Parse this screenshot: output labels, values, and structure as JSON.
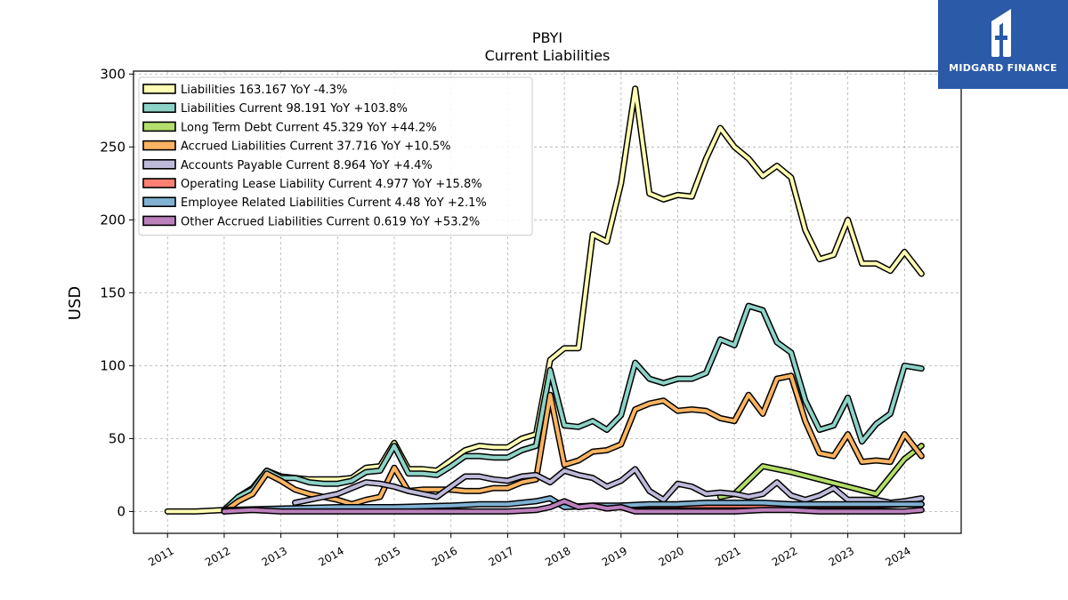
{
  "brand": {
    "name": "MIDGARD FINANCE",
    "color": "#2a5aa8"
  },
  "chart_data": {
    "type": "line",
    "title": "PBYI",
    "subtitle": "Current  Liabilities",
    "ylabel": "USD",
    "xlabel": "",
    "ylim": [
      -15,
      302
    ],
    "xlim": [
      2010.4,
      2025.0
    ],
    "yticks": [
      0,
      50,
      100,
      150,
      200,
      250,
      300
    ],
    "xticks": [
      "2011",
      "2012",
      "2013",
      "2014",
      "2015",
      "2016",
      "2017",
      "2018",
      "2019",
      "2020",
      "2021",
      "2022",
      "2023",
      "2024"
    ],
    "grid": true,
    "legend_position": "top-left",
    "series": [
      {
        "name": "Liabilities",
        "legend": "Liabilities  163.167 YoY -4.3%",
        "color": "#ffffb3",
        "x": [
          2011.0,
          2011.5,
          2012.0,
          2012.25,
          2012.5,
          2012.75,
          2013.0,
          2013.25,
          2013.5,
          2013.75,
          2014.0,
          2014.25,
          2014.5,
          2014.75,
          2015.0,
          2015.25,
          2015.5,
          2015.75,
          2016.0,
          2016.25,
          2016.5,
          2016.75,
          2017.0,
          2017.25,
          2017.5,
          2017.75,
          2018.0,
          2018.25,
          2018.5,
          2018.75,
          2019.0,
          2019.25,
          2019.5,
          2019.75,
          2020.0,
          2020.25,
          2020.5,
          2020.75,
          2021.0,
          2021.25,
          2021.5,
          2021.75,
          2022.0,
          2022.25,
          2022.5,
          2022.75,
          2023.0,
          2023.25,
          2023.5,
          2023.75,
          2024.0,
          2024.3
        ],
        "y": [
          0,
          0,
          1,
          10,
          16,
          28,
          24,
          23,
          22,
          22,
          22,
          23,
          30,
          31,
          47,
          29,
          29,
          28,
          35,
          42,
          45,
          44,
          44,
          50,
          53,
          104,
          112,
          112,
          190,
          185,
          225,
          290,
          218,
          214,
          217,
          216,
          242,
          263,
          250,
          242,
          230,
          237,
          229,
          193,
          173,
          176,
          200,
          170,
          170,
          165,
          178,
          163
        ]
      },
      {
        "name": "Liabilities Current",
        "legend": "Liabilities Current  98.191 YoY +103.8%",
        "color": "#8dd3c7",
        "x": [
          2012.0,
          2012.25,
          2012.5,
          2012.75,
          2013.0,
          2013.25,
          2013.5,
          2013.75,
          2014.0,
          2014.25,
          2014.5,
          2014.75,
          2015.0,
          2015.25,
          2015.5,
          2015.75,
          2016.0,
          2016.25,
          2016.5,
          2016.75,
          2017.0,
          2017.25,
          2017.5,
          2017.75,
          2018.0,
          2018.25,
          2018.5,
          2018.75,
          2019.0,
          2019.25,
          2019.5,
          2019.75,
          2020.0,
          2020.25,
          2020.5,
          2020.75,
          2021.0,
          2021.25,
          2021.5,
          2021.75,
          2022.0,
          2022.25,
          2022.5,
          2022.75,
          2023.0,
          2023.25,
          2023.5,
          2023.75,
          2024.0,
          2024.3
        ],
        "y": [
          1,
          10,
          15,
          28,
          23,
          23,
          20,
          19,
          19,
          21,
          27,
          28,
          45,
          26,
          26,
          25,
          31,
          38,
          38,
          37,
          37,
          42,
          45,
          97,
          59,
          58,
          62,
          56,
          66,
          102,
          91,
          88,
          91,
          91,
          95,
          118,
          114,
          141,
          138,
          116,
          109,
          76,
          56,
          59,
          78,
          48,
          60,
          67,
          100,
          98
        ]
      },
      {
        "name": "Long Term Debt Current",
        "legend": "Long Term Debt Current  45.329 YoY +44.2%",
        "color": "#b3de69",
        "x": [
          2020.75,
          2021.0,
          2021.5,
          2022.0,
          2022.5,
          2023.0,
          2023.5,
          2024.0,
          2024.3
        ],
        "y": [
          10,
          12,
          31,
          27,
          22,
          17,
          12,
          36,
          45
        ]
      },
      {
        "name": "Accrued Liabilities Current",
        "legend": "Accrued Liabilities Current  37.716 YoY +10.5%",
        "color": "#fdb462",
        "x": [
          2012.0,
          2012.25,
          2012.5,
          2012.75,
          2013.0,
          2013.25,
          2013.5,
          2013.75,
          2014.0,
          2014.25,
          2014.5,
          2014.75,
          2015.0,
          2015.25,
          2015.5,
          2015.75,
          2016.0,
          2016.25,
          2016.5,
          2016.75,
          2017.0,
          2017.25,
          2017.5,
          2017.75,
          2018.0,
          2018.25,
          2018.5,
          2018.75,
          2019.0,
          2019.25,
          2019.5,
          2019.75,
          2020.0,
          2020.25,
          2020.5,
          2020.75,
          2021.0,
          2021.25,
          2021.5,
          2021.75,
          2022.0,
          2022.25,
          2022.5,
          2022.75,
          2023.0,
          2023.25,
          2023.5,
          2023.75,
          2024.0,
          2024.3
        ],
        "y": [
          0,
          7,
          12,
          26,
          21,
          15,
          12,
          10,
          8,
          5,
          8,
          10,
          30,
          14,
          15,
          15,
          15,
          14,
          14,
          16,
          16,
          20,
          22,
          80,
          32,
          35,
          41,
          42,
          46,
          70,
          74,
          76,
          69,
          70,
          69,
          64,
          62,
          80,
          67,
          91,
          93,
          62,
          40,
          38,
          53,
          34,
          35,
          34,
          53,
          38
        ]
      },
      {
        "name": "Accounts Payable Current",
        "legend": "Accounts Payable Current  8.964 YoY +4.4%",
        "color": "#bebada",
        "x": [
          2013.25,
          2013.5,
          2013.75,
          2014.0,
          2014.25,
          2014.5,
          2014.75,
          2015.0,
          2015.25,
          2015.5,
          2015.75,
          2016.0,
          2016.25,
          2016.5,
          2016.75,
          2017.0,
          2017.25,
          2017.5,
          2017.75,
          2018.0,
          2018.25,
          2018.5,
          2018.75,
          2019.0,
          2019.25,
          2019.5,
          2019.75,
          2020.0,
          2020.25,
          2020.5,
          2020.75,
          2021.0,
          2021.25,
          2021.5,
          2021.75,
          2022.0,
          2022.25,
          2022.5,
          2022.75,
          2023.0,
          2023.25,
          2023.5,
          2023.75,
          2024.0,
          2024.3
        ],
        "y": [
          6,
          8,
          10,
          12,
          16,
          20,
          19,
          17,
          14,
          12,
          10,
          17,
          24,
          24,
          22,
          21,
          24,
          25,
          20,
          28,
          25,
          23,
          17,
          21,
          29,
          14,
          8,
          19,
          17,
          12,
          13,
          12,
          10,
          12,
          20,
          11,
          8,
          11,
          16,
          8,
          8,
          8,
          6,
          7,
          9
        ]
      },
      {
        "name": "Operating Lease Liability Current",
        "legend": "Operating Lease Liability Current  4.977 YoY +15.8%",
        "color": "#fb8072",
        "x": [
          2019.0,
          2019.5,
          2020.0,
          2020.5,
          2021.0,
          2021.5,
          2022.0,
          2022.5,
          2023.0,
          2023.5,
          2024.0,
          2024.3
        ],
        "y": [
          4,
          4,
          4,
          4,
          4,
          4,
          4,
          4,
          4,
          4,
          5,
          5
        ]
      },
      {
        "name": "Employee Related Liabilities Current",
        "legend": "Employee Related Liabilities Current  4.48 YoY +2.1%",
        "color": "#80b1d3",
        "x": [
          2012.0,
          2013.0,
          2014.0,
          2015.0,
          2016.0,
          2016.5,
          2017.0,
          2017.5,
          2017.75,
          2018.0,
          2018.5,
          2019.0,
          2019.5,
          2020.0,
          2020.5,
          2021.0,
          2021.5,
          2022.0,
          2022.5,
          2023.0,
          2023.5,
          2024.0,
          2024.3
        ],
        "y": [
          1,
          2,
          3,
          3,
          4,
          5,
          5,
          7,
          9,
          3,
          4,
          4,
          5,
          5,
          6,
          6,
          6,
          5,
          5,
          5,
          5,
          5,
          5
        ]
      },
      {
        "name": "Other Accrued Liabilities Current",
        "legend": "Other Accrued Liabilities Current  0.619 YoY +53.2%",
        "color": "#bc80bd",
        "x": [
          2012.0,
          2012.5,
          2013.0,
          2014.0,
          2015.0,
          2016.0,
          2017.0,
          2017.5,
          2017.75,
          2018.0,
          2018.25,
          2018.5,
          2018.75,
          2019.0,
          2019.25,
          2019.5,
          2020.0,
          2020.5,
          2021.0,
          2021.5,
          2022.0,
          2022.5,
          2023.0,
          2023.5,
          2024.0,
          2024.3
        ],
        "y": [
          0,
          1,
          0,
          0,
          0,
          0,
          0,
          1,
          3,
          7,
          3,
          4,
          2,
          3,
          0,
          0,
          0,
          0,
          0,
          1,
          1,
          0,
          0,
          0,
          0,
          1
        ]
      }
    ]
  }
}
